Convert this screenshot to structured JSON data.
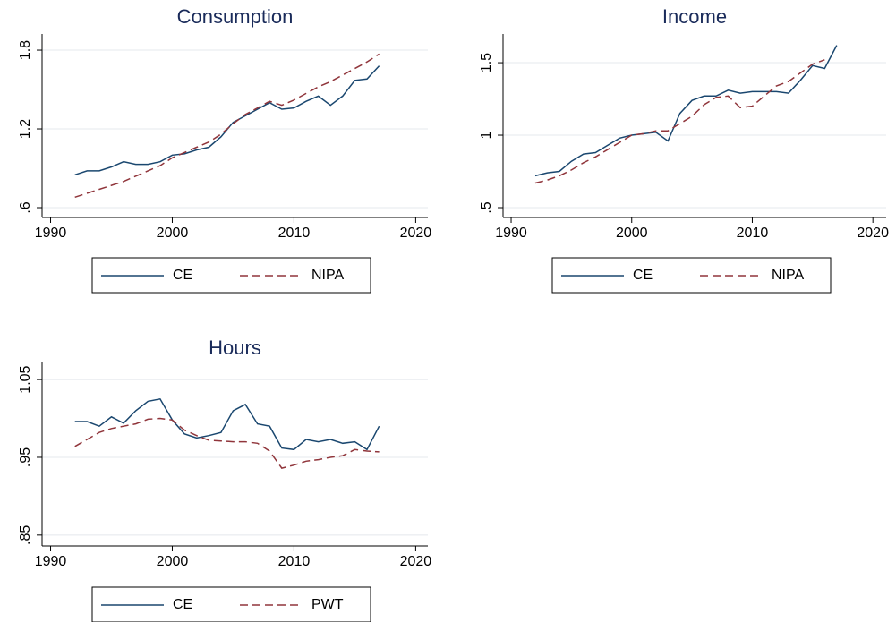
{
  "chart_data": [
    {
      "type": "line",
      "title": "Consumption",
      "x": [
        1992,
        1993,
        1994,
        1995,
        1996,
        1997,
        1998,
        1999,
        2000,
        2001,
        2002,
        2003,
        2004,
        2005,
        2006,
        2007,
        2008,
        2009,
        2010,
        2011,
        2012,
        2013,
        2014,
        2015,
        2016,
        2017
      ],
      "series": [
        {
          "name": "CE",
          "color": "#1a476f",
          "style": "solid",
          "values": [
            0.85,
            0.88,
            0.88,
            0.91,
            0.95,
            0.93,
            0.93,
            0.95,
            1.0,
            1.01,
            1.04,
            1.06,
            1.14,
            1.25,
            1.3,
            1.35,
            1.4,
            1.35,
            1.36,
            1.41,
            1.45,
            1.38,
            1.45,
            1.57,
            1.58,
            1.68
          ]
        },
        {
          "name": "NIPA",
          "color": "#90353b",
          "style": "dashed",
          "values": [
            0.68,
            0.71,
            0.74,
            0.77,
            0.8,
            0.84,
            0.88,
            0.92,
            0.98,
            1.02,
            1.06,
            1.1,
            1.16,
            1.24,
            1.31,
            1.36,
            1.41,
            1.38,
            1.42,
            1.47,
            1.52,
            1.56,
            1.61,
            1.66,
            1.71,
            1.77
          ]
        }
      ],
      "xlim": [
        1989.3,
        2021
      ],
      "xticks": [
        1990,
        2000,
        2010,
        2020
      ],
      "ylim": [
        0.525,
        1.923
      ],
      "yticks": [
        {
          "value": 0.6,
          "label": ".6"
        },
        1.2,
        1.8
      ],
      "grid": true
    },
    {
      "type": "line",
      "title": "Income",
      "x": [
        1992,
        1993,
        1994,
        1995,
        1996,
        1997,
        1998,
        1999,
        2000,
        2001,
        2002,
        2003,
        2004,
        2005,
        2006,
        2007,
        2008,
        2009,
        2010,
        2011,
        2012,
        2013,
        2014,
        2015,
        2016,
        2017
      ],
      "series": [
        {
          "name": "CE",
          "color": "#1a476f",
          "style": "solid",
          "values": [
            0.72,
            0.74,
            0.75,
            0.82,
            0.87,
            0.88,
            0.93,
            0.98,
            1.0,
            1.01,
            1.02,
            0.96,
            1.15,
            1.24,
            1.27,
            1.27,
            1.31,
            1.29,
            1.3,
            1.3,
            1.3,
            1.29,
            1.38,
            1.48,
            1.46,
            1.62
          ]
        },
        {
          "name": "NIPA",
          "color": "#90353b",
          "style": "dashed",
          "values": [
            0.67,
            0.69,
            0.72,
            0.76,
            0.81,
            0.85,
            0.9,
            0.95,
            1.0,
            1.01,
            1.03,
            1.03,
            1.08,
            1.13,
            1.21,
            1.26,
            1.27,
            1.19,
            1.2,
            1.27,
            1.34,
            1.37,
            1.43,
            1.49,
            1.52,
            null
          ]
        }
      ],
      "xlim": [
        1989.33,
        2021.1
      ],
      "xticks": [
        1990,
        2000,
        2010,
        2020
      ],
      "ylim": [
        0.432,
        1.698
      ],
      "yticks": [
        {
          "value": 0.5,
          "label": ".5"
        },
        1,
        1.5
      ],
      "grid": true
    },
    {
      "type": "line",
      "title": "Hours",
      "x": [
        1992,
        1993,
        1994,
        1995,
        1996,
        1997,
        1998,
        1999,
        2000,
        2001,
        2002,
        2003,
        2004,
        2005,
        2006,
        2007,
        2008,
        2009,
        2010,
        2011,
        2012,
        2013,
        2014,
        2015,
        2016,
        2017
      ],
      "series": [
        {
          "name": "CE",
          "color": "#1a476f",
          "style": "solid",
          "values": [
            0.996,
            0.996,
            0.99,
            1.002,
            0.994,
            1.01,
            1.022,
            1.025,
            0.998,
            0.98,
            0.975,
            0.978,
            0.982,
            1.01,
            1.018,
            0.993,
            0.99,
            0.962,
            0.96,
            0.973,
            0.97,
            0.973,
            0.968,
            0.97,
            0.96,
            0.99
          ]
        },
        {
          "name": "PWT",
          "color": "#90353b",
          "style": "dashed",
          "values": [
            0.964,
            0.973,
            0.982,
            0.987,
            0.99,
            0.993,
            0.999,
            1.0,
            0.998,
            0.985,
            0.978,
            0.972,
            0.971,
            0.97,
            0.97,
            0.968,
            0.958,
            0.936,
            0.94,
            0.945,
            0.947,
            0.95,
            0.952,
            0.96,
            0.958,
            0.957
          ]
        }
      ],
      "xlim": [
        1989.3,
        2021
      ],
      "xticks": [
        1990,
        2000,
        2010,
        2020
      ],
      "ylim": [
        0.836,
        1.072
      ],
      "yticks": [
        {
          "value": 0.85,
          "label": ".85"
        },
        {
          "value": 0.95,
          "label": ".95"
        },
        1.05
      ],
      "grid": true
    }
  ]
}
